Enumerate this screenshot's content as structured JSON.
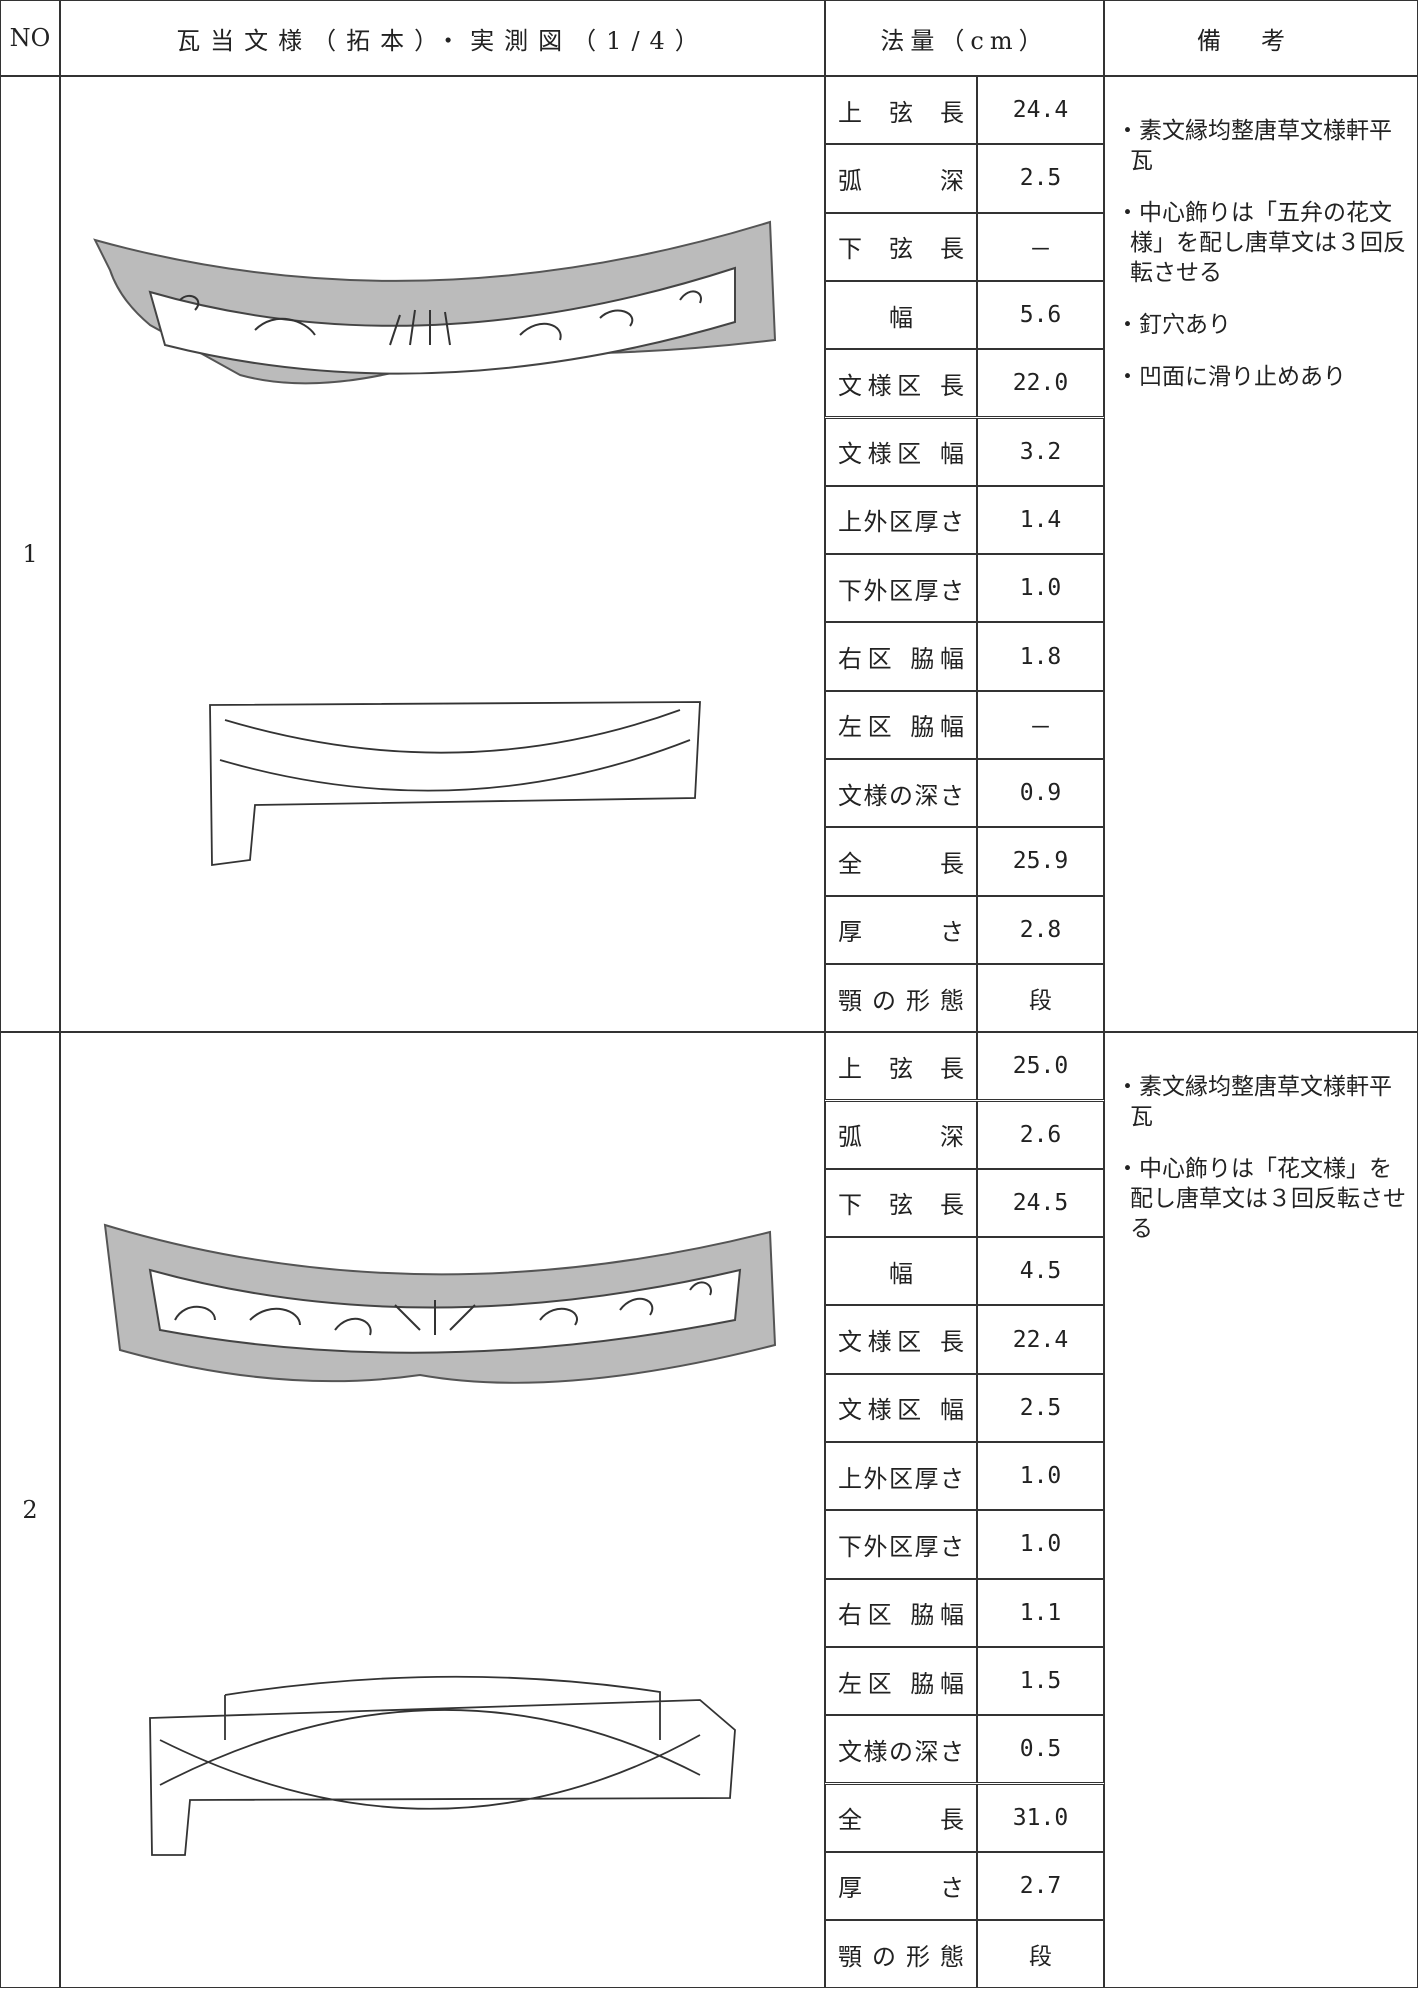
{
  "header": {
    "no": "NO",
    "figure": "瓦当文様（拓本）・実測図（1/4）",
    "measure": "法量（cm）",
    "notes": "備考"
  },
  "items": [
    {
      "no": "1",
      "measurements": [
        [
          "上 弦 長",
          "24.4"
        ],
        [
          "弧 深",
          "2.5"
        ],
        [
          "下 弦 長",
          "－"
        ],
        [
          "幅",
          "5.6"
        ],
        [
          "文様区 長",
          "22.0"
        ],
        [
          "文様区 幅",
          "3.2"
        ],
        [
          "上外区厚さ",
          "1.4"
        ],
        [
          "下外区厚さ",
          "1.0"
        ],
        [
          "右区 脇幅",
          "1.8"
        ],
        [
          "左区 脇幅",
          "－"
        ],
        [
          "文様の深さ",
          "0.9"
        ],
        [
          "全 長",
          "25.9"
        ],
        [
          "厚 さ",
          "2.8"
        ],
        [
          "顎の形態",
          "段"
        ]
      ],
      "notes": [
        "・素文縁均整唐草文様軒平瓦",
        "・中心飾りは「五弁の花文様」を配し唐草文は３回反転させる",
        "・釘穴あり",
        "・凹面に滑り止めあり"
      ]
    },
    {
      "no": "2",
      "measurements": [
        [
          "上 弦 長",
          "25.0"
        ],
        [
          "弧 深",
          "2.6"
        ],
        [
          "下 弦 長",
          "24.5"
        ],
        [
          "幅",
          "4.5"
        ],
        [
          "文様区 長",
          "22.4"
        ],
        [
          "文様区 幅",
          "2.5"
        ],
        [
          "上外区厚さ",
          "1.0"
        ],
        [
          "下外区厚さ",
          "1.0"
        ],
        [
          "右区 脇幅",
          "1.1"
        ],
        [
          "左区 脇幅",
          "1.5"
        ],
        [
          "文様の深さ",
          "0.5"
        ],
        [
          "全 長",
          "31.0"
        ],
        [
          "厚 さ",
          "2.7"
        ],
        [
          "顎の形態",
          "段"
        ]
      ],
      "notes": [
        "・素文縁均整唐草文様軒平瓦",
        "・中心飾りは「花文様」を配し唐草文は３回反転させる"
      ]
    }
  ]
}
